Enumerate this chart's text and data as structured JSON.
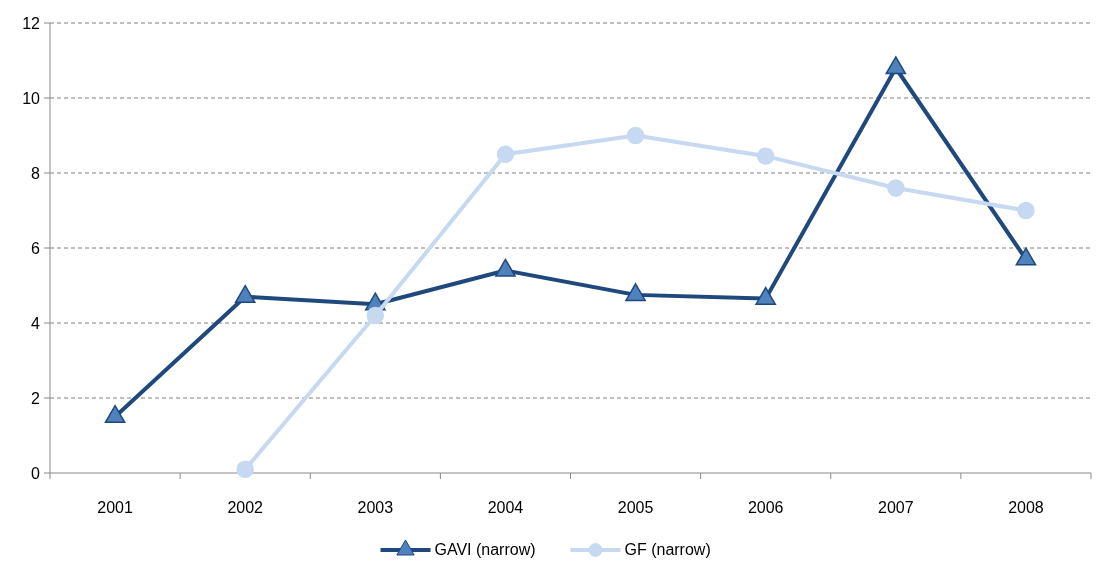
{
  "chart_data": {
    "type": "line",
    "categories": [
      "2001",
      "2002",
      "2003",
      "2004",
      "2005",
      "2006",
      "2007",
      "2008"
    ],
    "series": [
      {
        "name": "GAVI (narrow)",
        "color": "#1f497d",
        "marker": "triangle",
        "values": [
          1.5,
          4.7,
          4.5,
          5.4,
          4.75,
          4.65,
          10.8,
          5.7
        ]
      },
      {
        "name": "GF (narrow)",
        "color": "#c6d9f1",
        "marker": "circle",
        "values": [
          null,
          0.1,
          4.2,
          8.5,
          9.0,
          8.45,
          7.6,
          7.0
        ]
      }
    ],
    "ylim": [
      0,
      12
    ],
    "yticks": [
      0,
      2,
      4,
      6,
      8,
      10,
      12
    ],
    "grid": "y",
    "legend": "bottom",
    "line_style": "solid"
  }
}
